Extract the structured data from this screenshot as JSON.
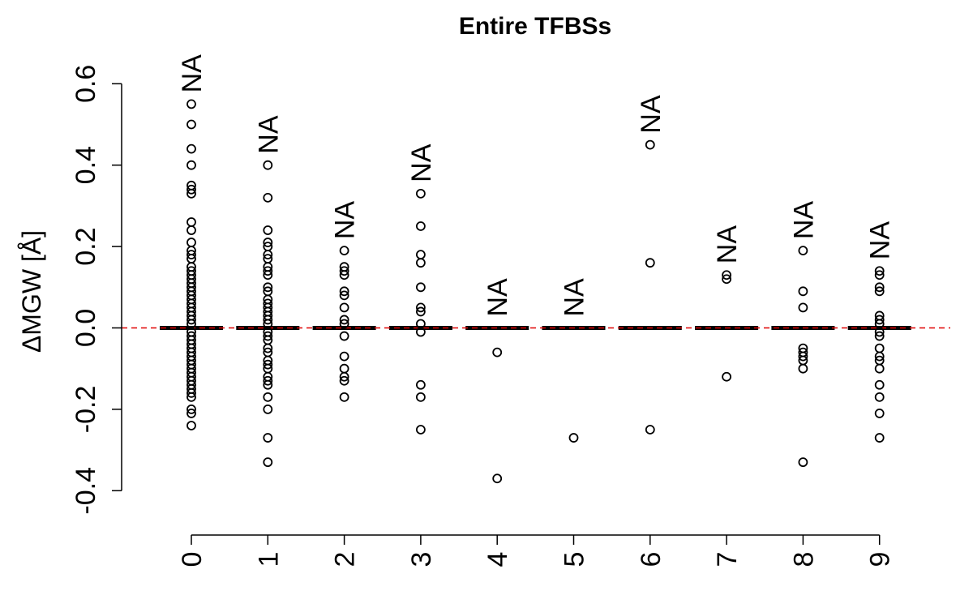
{
  "chart_data": {
    "type": "boxplot",
    "title": "Entire TFBSs",
    "ylabel": "ΔMGW [Å]",
    "xlabel": "",
    "categories": [
      "0",
      "1",
      "2",
      "3",
      "4",
      "5",
      "6",
      "7",
      "8",
      "9"
    ],
    "yticks": [
      "-0.4",
      "-0.2",
      "0.0",
      "0.2",
      "0.4",
      "0.6"
    ],
    "ytick_values": [
      -0.4,
      -0.2,
      0.0,
      0.2,
      0.4,
      0.6
    ],
    "ylim": [
      -0.45,
      0.62
    ],
    "grid": false,
    "reference_line": {
      "y": 0.0,
      "style": "dashed",
      "color": "#e00000"
    },
    "median_color": "#e00000",
    "box_values": [
      {
        "category": "0",
        "median": 0.0,
        "q1": 0.0,
        "q3": 0.0
      },
      {
        "category": "1",
        "median": 0.0,
        "q1": 0.0,
        "q3": 0.0
      },
      {
        "category": "2",
        "median": 0.0,
        "q1": 0.0,
        "q3": 0.0
      },
      {
        "category": "3",
        "median": 0.0,
        "q1": 0.0,
        "q3": 0.0
      },
      {
        "category": "4",
        "median": 0.0,
        "q1": 0.0,
        "q3": 0.0
      },
      {
        "category": "5",
        "median": 0.0,
        "q1": 0.0,
        "q3": 0.0
      },
      {
        "category": "6",
        "median": 0.0,
        "q1": 0.0,
        "q3": 0.0
      },
      {
        "category": "7",
        "median": 0.0,
        "q1": 0.0,
        "q3": 0.0
      },
      {
        "category": "8",
        "median": 0.0,
        "q1": 0.0,
        "q3": 0.0
      },
      {
        "category": "9",
        "median": 0.0,
        "q1": 0.0,
        "q3": 0.0
      }
    ],
    "outliers": [
      {
        "category": "0",
        "values": [
          0.55,
          0.5,
          0.44,
          0.4,
          0.35,
          0.34,
          0.33,
          0.26,
          0.24,
          0.21,
          0.19,
          0.18,
          0.17,
          0.15,
          0.14,
          0.13,
          0.12,
          0.11,
          0.1,
          0.09,
          0.08,
          0.07,
          0.06,
          0.05,
          0.04,
          0.03,
          0.02,
          0.01,
          -0.01,
          -0.02,
          -0.03,
          -0.04,
          -0.05,
          -0.06,
          -0.07,
          -0.08,
          -0.09,
          -0.1,
          -0.11,
          -0.12,
          -0.13,
          -0.14,
          -0.15,
          -0.16,
          -0.17,
          -0.2,
          -0.21,
          -0.24
        ]
      },
      {
        "category": "1",
        "values": [
          0.4,
          0.32,
          0.24,
          0.21,
          0.2,
          0.18,
          0.17,
          0.15,
          0.14,
          0.13,
          0.1,
          0.09,
          0.07,
          0.06,
          0.05,
          0.04,
          0.03,
          0.02,
          0.01,
          -0.01,
          -0.02,
          -0.03,
          -0.05,
          -0.06,
          -0.08,
          -0.09,
          -0.1,
          -0.12,
          -0.13,
          -0.14,
          -0.17,
          -0.2,
          -0.27,
          -0.33
        ]
      },
      {
        "category": "2",
        "values": [
          0.19,
          0.15,
          0.14,
          0.13,
          0.09,
          0.08,
          0.05,
          0.02,
          0.01,
          -0.02,
          -0.07,
          -0.1,
          -0.12,
          -0.13,
          -0.17
        ]
      },
      {
        "category": "3",
        "values": [
          0.33,
          0.25,
          0.18,
          0.16,
          0.1,
          0.05,
          0.04,
          0.01,
          -0.01,
          -0.14,
          -0.17,
          -0.25
        ]
      },
      {
        "category": "4",
        "values": [
          -0.06,
          -0.37
        ]
      },
      {
        "category": "5",
        "values": [
          -0.27
        ]
      },
      {
        "category": "6",
        "values": [
          0.45,
          0.16,
          -0.25
        ]
      },
      {
        "category": "7",
        "values": [
          0.13,
          0.12,
          -0.12
        ]
      },
      {
        "category": "8",
        "values": [
          0.19,
          0.09,
          0.05,
          -0.05,
          -0.06,
          -0.07,
          -0.08,
          -0.1,
          -0.33
        ]
      },
      {
        "category": "9",
        "values": [
          0.14,
          0.13,
          0.1,
          0.09,
          0.03,
          0.02,
          0.01,
          -0.01,
          -0.02,
          -0.05,
          -0.07,
          -0.08,
          -0.1,
          -0.14,
          -0.17,
          -0.21,
          -0.27
        ]
      }
    ],
    "annotations": [
      {
        "category": "0",
        "text": "NA",
        "y": 0.55
      },
      {
        "category": "1",
        "text": "NA",
        "y": 0.4
      },
      {
        "category": "2",
        "text": "NA",
        "y": 0.19
      },
      {
        "category": "3",
        "text": "NA",
        "y": 0.33
      },
      {
        "category": "4",
        "text": "NA",
        "y": 0.0
      },
      {
        "category": "5",
        "text": "NA",
        "y": 0.0
      },
      {
        "category": "6",
        "text": "NA",
        "y": 0.45
      },
      {
        "category": "7",
        "text": "NA",
        "y": 0.13
      },
      {
        "category": "8",
        "text": "NA",
        "y": 0.19
      },
      {
        "category": "9",
        "text": "NA",
        "y": 0.14
      }
    ]
  }
}
